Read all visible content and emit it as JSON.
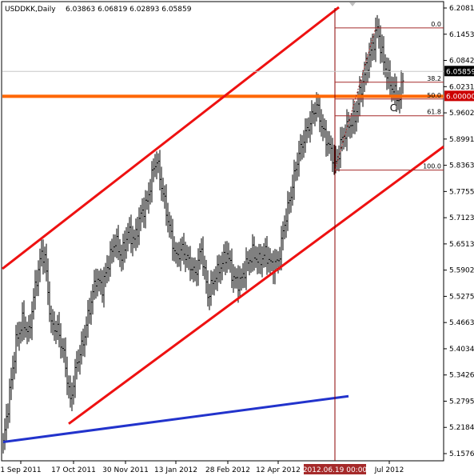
{
  "chart_data": {
    "type": "ohlc",
    "header": {
      "symbol": "USDDKK,Daily",
      "ohlc_text": "6.03863 6.06819 6.02893 6.05859"
    },
    "y_range": [
      5.15765,
      6.20813
    ],
    "y_ticks": [
      "6.20813",
      "6.14535",
      "6.08423",
      "6.02311",
      "5.96025",
      "5.89913",
      "5.83630",
      "5.77553",
      "5.71235",
      "5.65130",
      "5.59025",
      "5.52753",
      "5.46630",
      "5.40341",
      "5.34265",
      "5.27953",
      "5.21840",
      "5.15765"
    ],
    "x_ticks": [
      "1 Sep 2011",
      "17 Oct 2011",
      "30 Nov 2011",
      "13 Jan 2012",
      "28 Feb 2012",
      "12 Apr 2012",
      "Jul 2012"
    ],
    "crosshair_date_label": "2012.06.19 00:00",
    "price_label": "6.05859",
    "horizontal_level": {
      "label": "6.00000",
      "value": 6.0,
      "color": "#ff6600"
    },
    "fibonacci": {
      "from_value": 5.826,
      "to_value": 6.1611,
      "levels": [
        {
          "label": "0.0",
          "ratio": 0.0
        },
        {
          "label": "38.2",
          "ratio": 0.382
        },
        {
          "label": "50.0",
          "ratio": 0.5
        },
        {
          "label": "61.8",
          "ratio": 0.618
        },
        {
          "label": "100.0",
          "ratio": 1.0
        }
      ]
    },
    "annotation": "C",
    "trendlines": [
      {
        "name": "channel-upper",
        "color": "#ee1111",
        "points": [
          [
            0,
            5.595
          ],
          [
            210,
            6.21
          ]
        ]
      },
      {
        "name": "channel-lower",
        "color": "#ee1111",
        "points": [
          [
            41,
            5.228
          ],
          [
            275,
            5.88
          ]
        ]
      },
      {
        "name": "support-line",
        "color": "#2233cc",
        "points": [
          [
            0,
            5.185
          ],
          [
            216,
            5.293
          ]
        ]
      }
    ],
    "series": {
      "key_points": [
        [
          0,
          5.18
        ],
        [
          4,
          5.3
        ],
        [
          8,
          5.42
        ],
        [
          12,
          5.47
        ],
        [
          16,
          5.44
        ],
        [
          20,
          5.55
        ],
        [
          24,
          5.63
        ],
        [
          26,
          5.62
        ],
        [
          30,
          5.46
        ],
        [
          34,
          5.45
        ],
        [
          38,
          5.39
        ],
        [
          42,
          5.28
        ],
        [
          46,
          5.37
        ],
        [
          50,
          5.42
        ],
        [
          54,
          5.5
        ],
        [
          58,
          5.57
        ],
        [
          62,
          5.55
        ],
        [
          66,
          5.61
        ],
        [
          70,
          5.66
        ],
        [
          74,
          5.62
        ],
        [
          78,
          5.68
        ],
        [
          82,
          5.66
        ],
        [
          86,
          5.72
        ],
        [
          90,
          5.75
        ],
        [
          94,
          5.83
        ],
        [
          96,
          5.85
        ],
        [
          100,
          5.77
        ],
        [
          104,
          5.69
        ],
        [
          108,
          5.62
        ],
        [
          112,
          5.64
        ],
        [
          116,
          5.61
        ],
        [
          120,
          5.58
        ],
        [
          124,
          5.64
        ],
        [
          128,
          5.53
        ],
        [
          132,
          5.57
        ],
        [
          136,
          5.6
        ],
        [
          140,
          5.63
        ],
        [
          144,
          5.57
        ],
        [
          148,
          5.56
        ],
        [
          152,
          5.6
        ],
        [
          156,
          5.63
        ],
        [
          160,
          5.61
        ],
        [
          164,
          5.63
        ],
        [
          168,
          5.6
        ],
        [
          172,
          5.61
        ],
        [
          176,
          5.7
        ],
        [
          180,
          5.77
        ],
        [
          184,
          5.85
        ],
        [
          188,
          5.9
        ],
        [
          192,
          5.94
        ],
        [
          196,
          5.98
        ],
        [
          200,
          5.92
        ],
        [
          204,
          5.88
        ],
        [
          208,
          5.84
        ],
        [
          212,
          5.9
        ],
        [
          216,
          5.93
        ],
        [
          220,
          5.95
        ],
        [
          224,
          6.02
        ],
        [
          228,
          6.08
        ],
        [
          232,
          6.13
        ],
        [
          234,
          6.16
        ],
        [
          238,
          6.08
        ],
        [
          242,
          6.03
        ],
        [
          246,
          6.0
        ],
        [
          248,
          5.99
        ],
        [
          250,
          6.05
        ]
      ]
    }
  }
}
